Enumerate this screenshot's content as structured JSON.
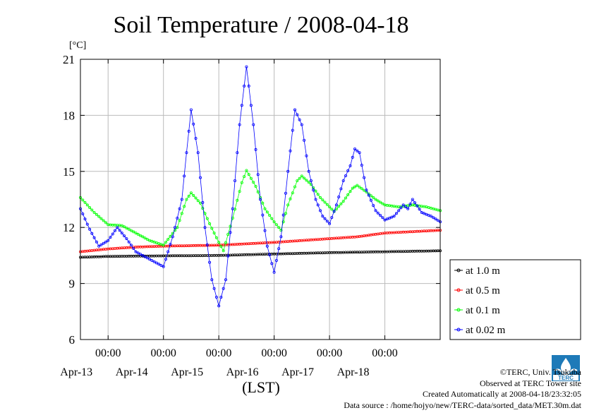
{
  "chart_data": {
    "type": "line",
    "title": "Soil Temperature / 2008-04-18",
    "ylabel": "[°C]",
    "xlabel": "(LST)",
    "x_axis": {
      "start": "2008-04-12 12:00",
      "end": "2008-04-18 24:00",
      "ticks": [
        {
          "time": "2008-04-13 00:00",
          "label": "00:00",
          "date_label": "Apr-13"
        },
        {
          "time": "2008-04-14 00:00",
          "label": "00:00",
          "date_label": "Apr-14"
        },
        {
          "time": "2008-04-15 00:00",
          "label": "00:00",
          "date_label": "Apr-15"
        },
        {
          "time": "2008-04-16 00:00",
          "label": "00:00",
          "date_label": "Apr-16"
        },
        {
          "time": "2008-04-17 00:00",
          "label": "00:00",
          "date_label": "Apr-17"
        },
        {
          "time": "2008-04-18 00:00",
          "label": "00:00",
          "date_label": "Apr-18"
        }
      ]
    },
    "ylim": [
      6,
      21
    ],
    "yticks": [
      6,
      9,
      12,
      15,
      18,
      21
    ],
    "grid": true,
    "legend_position": "right",
    "series": [
      {
        "name": "at 1.0 m",
        "color": "#000000",
        "points": [
          [
            "2008-04-12 12:00",
            10.4
          ],
          [
            "2008-04-13 00:00",
            10.45
          ],
          [
            "2008-04-14 00:00",
            10.48
          ],
          [
            "2008-04-15 00:00",
            10.5
          ],
          [
            "2008-04-16 00:00",
            10.58
          ],
          [
            "2008-04-17 00:00",
            10.65
          ],
          [
            "2008-04-18 00:00",
            10.7
          ],
          [
            "2008-04-18 24:00",
            10.75
          ]
        ]
      },
      {
        "name": "at 0.5 m",
        "color": "#ff0000",
        "points": [
          [
            "2008-04-12 12:00",
            10.7
          ],
          [
            "2008-04-13 00:00",
            10.85
          ],
          [
            "2008-04-13 12:00",
            10.95
          ],
          [
            "2008-04-14 00:00",
            11.0
          ],
          [
            "2008-04-15 00:00",
            11.05
          ],
          [
            "2008-04-16 00:00",
            11.2
          ],
          [
            "2008-04-17 00:00",
            11.4
          ],
          [
            "2008-04-17 12:00",
            11.5
          ],
          [
            "2008-04-18 00:00",
            11.7
          ],
          [
            "2008-04-18 24:00",
            11.85
          ]
        ]
      },
      {
        "name": "at 0.1 m",
        "color": "#00ff00",
        "points": [
          [
            "2008-04-12 12:00",
            13.6
          ],
          [
            "2008-04-12 18:00",
            12.8
          ],
          [
            "2008-04-13 00:00",
            12.15
          ],
          [
            "2008-04-13 06:00",
            12.1
          ],
          [
            "2008-04-13 12:00",
            11.7
          ],
          [
            "2008-04-13 18:00",
            11.3
          ],
          [
            "2008-04-14 00:00",
            11.05
          ],
          [
            "2008-04-14 06:00",
            12.0
          ],
          [
            "2008-04-14 10:00",
            13.5
          ],
          [
            "2008-04-14 12:00",
            13.85
          ],
          [
            "2008-04-14 16:00",
            13.3
          ],
          [
            "2008-04-14 20:00",
            12.2
          ],
          [
            "2008-04-15 00:00",
            11.2
          ],
          [
            "2008-04-15 02:00",
            10.75
          ],
          [
            "2008-04-15 06:00",
            12.5
          ],
          [
            "2008-04-15 10:00",
            14.4
          ],
          [
            "2008-04-15 12:00",
            15.05
          ],
          [
            "2008-04-15 16:00",
            14.2
          ],
          [
            "2008-04-15 20:00",
            13.0
          ],
          [
            "2008-04-16 00:00",
            12.3
          ],
          [
            "2008-04-16 03:00",
            11.85
          ],
          [
            "2008-04-16 06:00",
            13.2
          ],
          [
            "2008-04-16 10:00",
            14.5
          ],
          [
            "2008-04-16 12:00",
            14.75
          ],
          [
            "2008-04-16 16:00",
            14.3
          ],
          [
            "2008-04-16 20:00",
            13.6
          ],
          [
            "2008-04-17 00:00",
            13.1
          ],
          [
            "2008-04-17 02:00",
            12.85
          ],
          [
            "2008-04-17 06:00",
            13.4
          ],
          [
            "2008-04-17 10:00",
            14.1
          ],
          [
            "2008-04-17 12:00",
            14.25
          ],
          [
            "2008-04-17 16:00",
            13.9
          ],
          [
            "2008-04-17 20:00",
            13.5
          ],
          [
            "2008-04-18 00:00",
            13.2
          ],
          [
            "2008-04-18 06:00",
            13.1
          ],
          [
            "2008-04-18 12:00",
            13.2
          ],
          [
            "2008-04-18 18:00",
            13.1
          ],
          [
            "2008-04-18 24:00",
            12.9
          ]
        ]
      },
      {
        "name": "at 0.02 m",
        "color": "#0000ff",
        "points": [
          [
            "2008-04-12 12:00",
            13.0
          ],
          [
            "2008-04-12 16:00",
            11.9
          ],
          [
            "2008-04-12 20:00",
            11.0
          ],
          [
            "2008-04-13 00:00",
            11.3
          ],
          [
            "2008-04-13 04:00",
            12.0
          ],
          [
            "2008-04-13 08:00",
            11.4
          ],
          [
            "2008-04-13 12:00",
            10.7
          ],
          [
            "2008-04-13 18:00",
            10.3
          ],
          [
            "2008-04-14 00:00",
            9.9
          ],
          [
            "2008-04-14 04:00",
            11.5
          ],
          [
            "2008-04-14 08:00",
            13.5
          ],
          [
            "2008-04-14 10:00",
            16.0
          ],
          [
            "2008-04-14 12:00",
            18.3
          ],
          [
            "2008-04-14 15:00",
            16.0
          ],
          [
            "2008-04-14 18:00",
            12.0
          ],
          [
            "2008-04-14 21:00",
            9.2
          ],
          [
            "2008-04-15 00:00",
            7.8
          ],
          [
            "2008-04-15 03:00",
            9.2
          ],
          [
            "2008-04-15 06:00",
            13.0
          ],
          [
            "2008-04-15 09:00",
            17.5
          ],
          [
            "2008-04-15 12:00",
            20.6
          ],
          [
            "2008-04-15 15:00",
            17.5
          ],
          [
            "2008-04-15 18:00",
            13.5
          ],
          [
            "2008-04-15 21:00",
            11.0
          ],
          [
            "2008-04-16 00:00",
            9.6
          ],
          [
            "2008-04-16 03:00",
            11.5
          ],
          [
            "2008-04-16 06:00",
            15.0
          ],
          [
            "2008-04-16 09:00",
            18.3
          ],
          [
            "2008-04-16 12:00",
            17.5
          ],
          [
            "2008-04-16 15:00",
            15.0
          ],
          [
            "2008-04-16 18:00",
            13.5
          ],
          [
            "2008-04-16 21:00",
            12.6
          ],
          [
            "2008-04-17 00:00",
            12.2
          ],
          [
            "2008-04-17 03:00",
            13.2
          ],
          [
            "2008-04-17 06:00",
            14.5
          ],
          [
            "2008-04-17 09:00",
            15.3
          ],
          [
            "2008-04-17 11:00",
            16.2
          ],
          [
            "2008-04-17 13:00",
            16.0
          ],
          [
            "2008-04-17 16:00",
            14.0
          ],
          [
            "2008-04-17 20:00",
            12.9
          ],
          [
            "2008-04-18 00:00",
            12.4
          ],
          [
            "2008-04-18 04:00",
            12.6
          ],
          [
            "2008-04-18 08:00",
            13.2
          ],
          [
            "2008-04-18 10:00",
            13.0
          ],
          [
            "2008-04-18 12:00",
            13.5
          ],
          [
            "2008-04-18 16:00",
            12.8
          ],
          [
            "2008-04-18 20:00",
            12.6
          ],
          [
            "2008-04-18 24:00",
            12.3
          ]
        ]
      }
    ]
  },
  "footer": {
    "copyright": "©TERC, Univ. Tsukuba",
    "observed": "Observed at TERC Tower site",
    "created": "Created Automatically at 2008-04-18/23:32:05",
    "source": "Data source : /home/hojyo/new/TERC-data/sorted_data/MET.30m.dat"
  },
  "logo_text": "TERC"
}
